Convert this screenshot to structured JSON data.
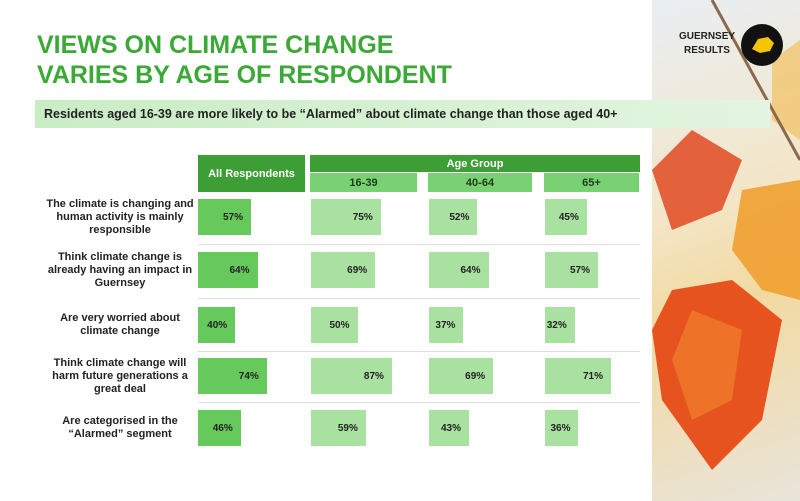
{
  "chart_data": {
    "type": "bar-table",
    "title": "VIEWS ON CLIMATE CHANGE VARIES BY AGE OF RESPONDENT",
    "subtitle": "Residents aged 16-39 are more likely to be “Alarmed” about climate change than those aged 40+",
    "brand": "GUERNSEY RESULTS",
    "group_label": "Age Group",
    "categories": [
      "The climate is changing and human activity is mainly responsible",
      "Think climate change is already having an impact in Guernsey",
      "Are very worried about climate change",
      "Think climate change will harm future generations a great deal",
      "Are categorised in the “Alarmed” segment"
    ],
    "series": [
      {
        "name": "All Respondents",
        "color": "#66c95c",
        "values": [
          57,
          64,
          40,
          74,
          46
        ],
        "value_labels": [
          "57%",
          "64%",
          "40%",
          "74%",
          "46%"
        ]
      },
      {
        "name": "16-39",
        "color": "#a9e1a0",
        "values": [
          75,
          69,
          50,
          87,
          59
        ],
        "value_labels": [
          "75%",
          "69%",
          "50%",
          "87%",
          "59%"
        ]
      },
      {
        "name": "40-64",
        "color": "#a9e1a0",
        "values": [
          52,
          64,
          37,
          69,
          43
        ],
        "value_labels": [
          "52%",
          "64%",
          "37%",
          "69%",
          "43%"
        ]
      },
      {
        "name": "65+",
        "color": "#a9e1a0",
        "values": [
          45,
          57,
          32,
          71,
          36
        ],
        "value_labels": [
          "45%",
          "57%",
          "32%",
          "71%",
          "36%"
        ]
      }
    ]
  }
}
